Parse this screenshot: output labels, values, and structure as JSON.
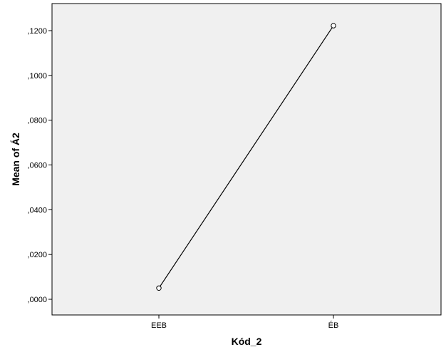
{
  "chart_data": {
    "type": "line",
    "categories": [
      "EEB",
      "ÉB"
    ],
    "series": [
      {
        "values": [
          0.005,
          0.1222
        ]
      }
    ],
    "xlabel": "Kód_2",
    "ylabel": "Mean of Á2",
    "ylim": [
      0,
      0.13
    ],
    "yticks": [
      0,
      0.02,
      0.04,
      0.06,
      0.08,
      0.1,
      0.12
    ],
    "ytick_labels": [
      ",0000",
      ",0200",
      ",0400",
      ",0600",
      ",0800",
      ",1000",
      ",1200"
    ],
    "grid": false,
    "legend": "none",
    "colors": {
      "plot_background": "#f0f0f0",
      "line": "#000000",
      "marker_fill": "#ffffff",
      "axis": "#000000"
    }
  }
}
